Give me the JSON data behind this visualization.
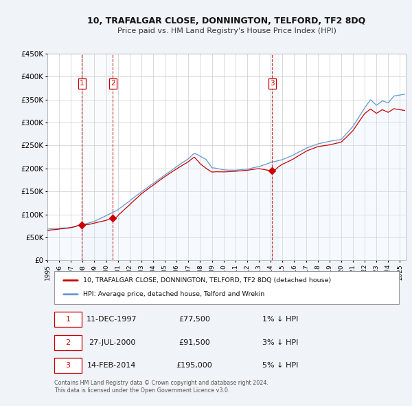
{
  "title": "10, TRAFALGAR CLOSE, DONNINGTON, TELFORD, TF2 8DQ",
  "subtitle": "Price paid vs. HM Land Registry's House Price Index (HPI)",
  "background_color": "#f0f4f8",
  "plot_bg_color": "#ffffff",
  "xlim": [
    1995.0,
    2025.5
  ],
  "ylim": [
    0,
    450000
  ],
  "yticks": [
    0,
    50000,
    100000,
    150000,
    200000,
    250000,
    300000,
    350000,
    400000,
    450000
  ],
  "ytick_labels": [
    "£0",
    "£50K",
    "£100K",
    "£150K",
    "£200K",
    "£250K",
    "£300K",
    "£350K",
    "£400K",
    "£450K"
  ],
  "xtick_years": [
    1995,
    1996,
    1997,
    1998,
    1999,
    2000,
    2001,
    2002,
    2003,
    2004,
    2005,
    2006,
    2007,
    2008,
    2009,
    2010,
    2011,
    2012,
    2013,
    2014,
    2015,
    2016,
    2017,
    2018,
    2019,
    2020,
    2021,
    2022,
    2023,
    2024,
    2025
  ],
  "sale_dates": [
    1997.94,
    2000.56,
    2014.12
  ],
  "sale_prices": [
    77500,
    91500,
    195000
  ],
  "sale_labels": [
    "1",
    "2",
    "3"
  ],
  "vline_color": "#cc0000",
  "sale_marker_color": "#cc0000",
  "hpi_line_color": "#6699cc",
  "hpi_fill_color": "#ddeeff",
  "vband_color": "#e8f0f8",
  "price_line_color": "#cc0000",
  "legend_label_price": "10, TRAFALGAR CLOSE, DONNINGTON, TELFORD, TF2 8DQ (detached house)",
  "legend_label_hpi": "HPI: Average price, detached house, Telford and Wrekin",
  "table_rows": [
    {
      "num": "1",
      "date": "11-DEC-1997",
      "price": "£77,500",
      "hpi": "1% ↓ HPI"
    },
    {
      "num": "2",
      "date": "27-JUL-2000",
      "price": "£91,500",
      "hpi": "3% ↓ HPI"
    },
    {
      "num": "3",
      "date": "14-FEB-2014",
      "price": "£195,000",
      "hpi": "5% ↓ HPI"
    }
  ],
  "footer": "Contains HM Land Registry data © Crown copyright and database right 2024.\nThis data is licensed under the Open Government Licence v3.0.",
  "grid_color": "#cccccc",
  "label_box_color": "#cc0000"
}
